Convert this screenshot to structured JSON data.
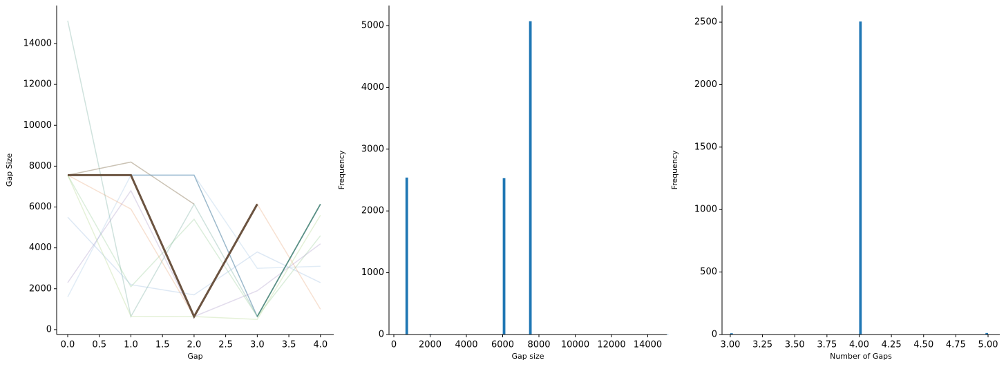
{
  "chart_data": [
    {
      "type": "line",
      "xlabel": "Gap",
      "ylabel": "Gap Size",
      "x": [
        0,
        1,
        2,
        3,
        4
      ],
      "xlim": [
        -0.175,
        4.21
      ],
      "ylim": [
        -240,
        15860
      ],
      "xticks": [
        {
          "value": 0,
          "label": "0.0"
        },
        {
          "value": 0.5,
          "label": "0.5"
        },
        {
          "value": 1,
          "label": "1.0"
        },
        {
          "value": 1.5,
          "label": "1.5"
        },
        {
          "value": 2,
          "label": "2.0"
        },
        {
          "value": 2.5,
          "label": "2.5"
        },
        {
          "value": 3,
          "label": "3.0"
        },
        {
          "value": 3.5,
          "label": "3.5"
        },
        {
          "value": 4,
          "label": "4.0"
        }
      ],
      "yticks": [
        0,
        2000,
        4000,
        6000,
        8000,
        10000,
        12000,
        14000
      ],
      "series": [
        {
          "color": "#5f9e8f",
          "alpha": 0.3,
          "linewidth": 1.5,
          "values": [
            15120,
            640,
            6140,
            640,
            6140
          ]
        },
        {
          "color": "#8c7a5b",
          "alpha": 0.45,
          "linewidth": 1.5,
          "values": [
            7560,
            8200,
            6140,
            null,
            null
          ]
        },
        {
          "color": "#4a7fa0",
          "alpha": 0.55,
          "linewidth": 1.5,
          "values": [
            7560,
            7560,
            7560,
            640,
            6140
          ]
        },
        {
          "color": "#8cc78a",
          "alpha": 0.3,
          "linewidth": 1.5,
          "values": [
            7560,
            2100,
            5400,
            640,
            4600
          ]
        },
        {
          "color": "#8fb4d9",
          "alpha": 0.3,
          "linewidth": 1.5,
          "values": [
            5500,
            2200,
            1700,
            3800,
            2300
          ]
        },
        {
          "color": "#9cc0e0",
          "alpha": 0.3,
          "linewidth": 1.5,
          "values": [
            1600,
            7560,
            7560,
            3000,
            3100
          ]
        },
        {
          "color": "#e59a6a",
          "alpha": 0.3,
          "linewidth": 1.5,
          "values": [
            7560,
            5900,
            640,
            6140,
            1000
          ]
        },
        {
          "color": "#a08bc0",
          "alpha": 0.3,
          "linewidth": 1.5,
          "values": [
            2300,
            6800,
            640,
            1900,
            4200
          ]
        },
        {
          "color": "#b5d68e",
          "alpha": 0.35,
          "linewidth": 1.5,
          "values": [
            7560,
            650,
            640,
            500,
            5600
          ]
        },
        {
          "color": "#4f8a78",
          "alpha": 0.8,
          "linewidth": 1.8,
          "values": [
            null,
            null,
            null,
            640,
            6140
          ]
        },
        {
          "color": "#6b5340",
          "alpha": 1,
          "linewidth": 3,
          "values": [
            7560,
            7560,
            640,
            6140,
            null
          ]
        }
      ]
    },
    {
      "type": "histogram",
      "xlabel": "Gap size",
      "ylabel": "Frequency",
      "color": "#1f77b4",
      "xlim": [
        -267,
        15048
      ],
      "ylim": [
        0,
        5324
      ],
      "xticks": [
        0,
        2000,
        4000,
        6000,
        8000,
        10000,
        12000,
        14000
      ],
      "yticks": [
        0,
        1000,
        2000,
        3000,
        4000,
        5000
      ],
      "bins": [
        640,
        785,
        930,
        1075,
        1220,
        1365,
        1510,
        1655,
        1800,
        1945,
        2090,
        2235,
        2380,
        2525,
        2670,
        2815,
        2960,
        3105,
        3250,
        3395,
        3540,
        3685,
        3830,
        3975,
        4120,
        4265,
        4410,
        4555,
        4700,
        4845,
        4990,
        5135,
        5280,
        5425,
        5570,
        5715,
        5860,
        6005,
        6150,
        6295,
        6440,
        6585,
        6730,
        6875,
        7020,
        7165,
        7310,
        7455,
        7600,
        7745,
        7890,
        8035,
        8180,
        8325,
        8470,
        8615,
        8760,
        8905,
        9050,
        9195,
        9340,
        9485,
        9630,
        9775,
        9920,
        10065,
        10210,
        10355,
        10500,
        10645,
        10790,
        10935,
        11080,
        11225,
        11370,
        11515,
        11660,
        11805,
        11950,
        12095,
        12240,
        12385,
        12530,
        12675,
        12820,
        12965,
        13110,
        13255,
        13400,
        13545,
        13690,
        13835,
        13980,
        14125,
        14270,
        14415,
        14560,
        14705,
        14850,
        14995,
        15140
      ],
      "counts": [
        2540,
        0,
        0,
        0,
        0,
        0,
        0,
        0,
        0,
        8,
        0,
        0,
        0,
        0,
        0,
        0,
        0,
        0,
        0,
        0,
        0,
        0,
        0,
        0,
        0,
        0,
        0,
        0,
        0,
        0,
        0,
        0,
        0,
        0,
        0,
        0,
        5,
        2530,
        0,
        0,
        0,
        0,
        0,
        0,
        0,
        0,
        0,
        5070,
        0,
        0,
        5,
        0,
        0,
        0,
        0,
        0,
        0,
        0,
        0,
        0,
        0,
        0,
        0,
        0,
        0,
        0,
        0,
        0,
        0,
        0,
        0,
        0,
        0,
        0,
        0,
        0,
        0,
        0,
        0,
        0,
        0,
        0,
        0,
        0,
        0,
        0,
        0,
        0,
        0,
        0,
        0,
        0,
        0,
        0,
        0,
        0,
        0,
        0,
        0,
        5
      ]
    },
    {
      "type": "histogram",
      "xlabel": "Number of Gaps",
      "ylabel": "Frequency",
      "color": "#1f77b4",
      "xlim": [
        2.936,
        5.091
      ],
      "ylim": [
        0,
        2633
      ],
      "xticks": [
        {
          "value": 3,
          "label": "3.00"
        },
        {
          "value": 3.25,
          "label": "3.25"
        },
        {
          "value": 3.5,
          "label": "3.50"
        },
        {
          "value": 3.75,
          "label": "3.75"
        },
        {
          "value": 4,
          "label": "4.00"
        },
        {
          "value": 4.25,
          "label": "4.25"
        },
        {
          "value": 4.5,
          "label": "4.50"
        },
        {
          "value": 4.75,
          "label": "4.75"
        },
        {
          "value": 5,
          "label": "5.00"
        }
      ],
      "yticks": [
        0,
        500,
        1000,
        1500,
        2000,
        2500
      ],
      "bins": [
        3,
        3.02,
        3.04,
        3.06,
        3.08,
        3.1,
        3.12,
        3.14,
        3.16,
        3.18,
        3.2,
        3.22,
        3.24,
        3.26,
        3.28,
        3.3,
        3.32,
        3.34,
        3.36,
        3.38,
        3.4,
        3.42,
        3.44,
        3.46,
        3.48,
        3.5,
        3.52,
        3.54,
        3.56,
        3.58,
        3.6,
        3.62,
        3.64,
        3.66,
        3.68,
        3.7,
        3.72,
        3.74,
        3.76,
        3.78,
        3.8,
        3.82,
        3.84,
        3.86,
        3.88,
        3.9,
        3.92,
        3.94,
        3.96,
        3.98,
        4,
        4.02,
        4.04,
        4.06,
        4.08,
        4.1,
        4.12,
        4.14,
        4.16,
        4.18,
        4.2,
        4.22,
        4.24,
        4.26,
        4.28,
        4.3,
        4.32,
        4.34,
        4.36,
        4.38,
        4.4,
        4.42,
        4.44,
        4.46,
        4.48,
        4.5,
        4.52,
        4.54,
        4.56,
        4.58,
        4.6,
        4.62,
        4.64,
        4.66,
        4.68,
        4.7,
        4.72,
        4.74,
        4.76,
        4.78,
        4.8,
        4.82,
        4.84,
        4.86,
        4.88,
        4.9,
        4.92,
        4.94,
        4.96,
        4.98,
        5
      ],
      "counts": [
        10,
        0,
        0,
        0,
        0,
        0,
        0,
        0,
        0,
        0,
        0,
        0,
        0,
        0,
        0,
        0,
        0,
        0,
        0,
        0,
        0,
        0,
        0,
        0,
        0,
        0,
        0,
        0,
        0,
        0,
        0,
        0,
        0,
        0,
        0,
        0,
        0,
        0,
        0,
        0,
        0,
        0,
        0,
        0,
        0,
        0,
        0,
        0,
        0,
        0,
        2505,
        0,
        0,
        0,
        0,
        0,
        0,
        0,
        0,
        0,
        0,
        0,
        0,
        0,
        0,
        0,
        0,
        0,
        0,
        0,
        0,
        0,
        0,
        0,
        0,
        0,
        0,
        0,
        0,
        0,
        0,
        0,
        0,
        0,
        0,
        0,
        0,
        0,
        0,
        0,
        0,
        0,
        0,
        0,
        0,
        0,
        0,
        0,
        0,
        12
      ]
    }
  ]
}
